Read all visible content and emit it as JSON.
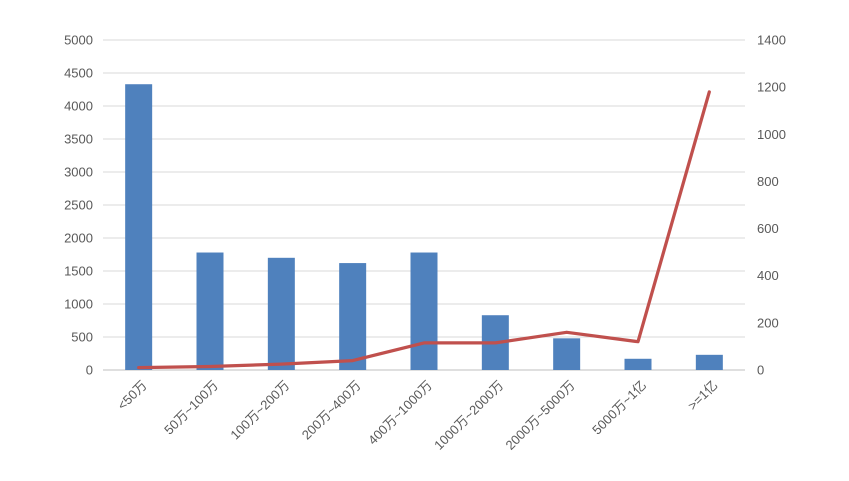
{
  "chart_data": {
    "type": "bar+line",
    "title": "",
    "legend": "none",
    "grid": true,
    "categories": [
      "<50万",
      "50万~100万",
      "100万~200万",
      "200万~400万",
      "400万~1000万",
      "1000万~2000万",
      "2000万~5000万",
      "5000万~1亿",
      ">=1亿"
    ],
    "series": [
      {
        "name": "bars",
        "axis": "left",
        "type": "bar",
        "values": [
          4330,
          1780,
          1700,
          1620,
          1780,
          830,
          480,
          170,
          230
        ]
      },
      {
        "name": "line",
        "axis": "right",
        "type": "line",
        "values": [
          10,
          15,
          25,
          40,
          115,
          115,
          160,
          120,
          1180
        ]
      }
    ],
    "left_axis": {
      "min": 0,
      "max": 5000,
      "step": 500,
      "ticks": [
        "0",
        "500",
        "1000",
        "1500",
        "2000",
        "2500",
        "3000",
        "3500",
        "4000",
        "4500",
        "5000"
      ]
    },
    "right_axis": {
      "min": 0,
      "max": 1400,
      "step": 200,
      "ticks": [
        "0",
        "200",
        "400",
        "600",
        "800",
        "1000",
        "1200",
        "1400"
      ]
    },
    "colors": {
      "bar": "#4F81BD",
      "line": "#C0504D",
      "gridline": "#D9D9D9",
      "axis_line": "#BFBFBF",
      "tick_text": "#595959",
      "background": "#FFFFFF"
    }
  }
}
